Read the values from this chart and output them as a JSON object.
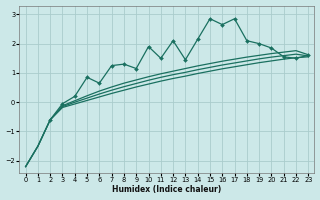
{
  "xlabel": "Humidex (Indice chaleur)",
  "background_color": "#cce8e8",
  "grid_color": "#aacccc",
  "line_color": "#1a7060",
  "xlim": [
    -0.5,
    23.5
  ],
  "ylim": [
    -2.4,
    3.3
  ],
  "xticks": [
    0,
    1,
    2,
    3,
    4,
    5,
    6,
    7,
    8,
    9,
    10,
    11,
    12,
    13,
    14,
    15,
    16,
    17,
    18,
    19,
    20,
    21,
    22,
    23
  ],
  "yticks": [
    -2,
    -1,
    0,
    1,
    2,
    3
  ],
  "jagged_x": [
    2,
    3,
    4,
    5,
    6,
    7,
    8,
    9,
    10,
    11,
    12,
    13,
    14,
    15,
    16,
    17,
    18,
    19,
    20,
    21,
    22,
    23
  ],
  "jagged_y": [
    -0.6,
    -0.05,
    0.2,
    0.85,
    0.65,
    1.25,
    1.3,
    1.15,
    1.9,
    1.5,
    2.1,
    1.45,
    2.15,
    2.85,
    2.65,
    2.85,
    2.1,
    2.0,
    1.85,
    1.55,
    1.5,
    1.6
  ],
  "smooth_top_x": [
    0,
    1,
    2,
    3,
    4,
    5,
    6,
    7,
    8,
    9,
    10,
    11,
    12,
    13,
    14,
    15,
    16,
    17,
    18,
    19,
    20,
    21,
    22,
    23
  ],
  "smooth_top_y": [
    -2.2,
    -1.5,
    -0.6,
    -0.12,
    0.05,
    0.22,
    0.38,
    0.52,
    0.65,
    0.76,
    0.87,
    0.97,
    1.06,
    1.15,
    1.24,
    1.32,
    1.4,
    1.47,
    1.54,
    1.6,
    1.66,
    1.71,
    1.76,
    1.62
  ],
  "smooth_mid_x": [
    0,
    1,
    2,
    3,
    4,
    5,
    6,
    7,
    8,
    9,
    10,
    11,
    12,
    13,
    14,
    15,
    16,
    17,
    18,
    19,
    20,
    21,
    22,
    23
  ],
  "smooth_mid_y": [
    -2.2,
    -1.5,
    -0.6,
    -0.15,
    -0.0,
    0.14,
    0.28,
    0.41,
    0.53,
    0.64,
    0.75,
    0.85,
    0.94,
    1.02,
    1.11,
    1.19,
    1.27,
    1.34,
    1.41,
    1.48,
    1.54,
    1.59,
    1.64,
    1.58
  ],
  "smooth_bot_x": [
    0,
    1,
    2,
    3,
    4,
    5,
    6,
    7,
    8,
    9,
    10,
    11,
    12,
    13,
    14,
    15,
    16,
    17,
    18,
    19,
    20,
    21,
    22,
    23
  ],
  "smooth_bot_y": [
    -2.2,
    -1.5,
    -0.6,
    -0.18,
    -0.06,
    0.06,
    0.18,
    0.3,
    0.41,
    0.52,
    0.62,
    0.72,
    0.81,
    0.89,
    0.98,
    1.06,
    1.14,
    1.21,
    1.28,
    1.35,
    1.41,
    1.47,
    1.52,
    1.55
  ]
}
